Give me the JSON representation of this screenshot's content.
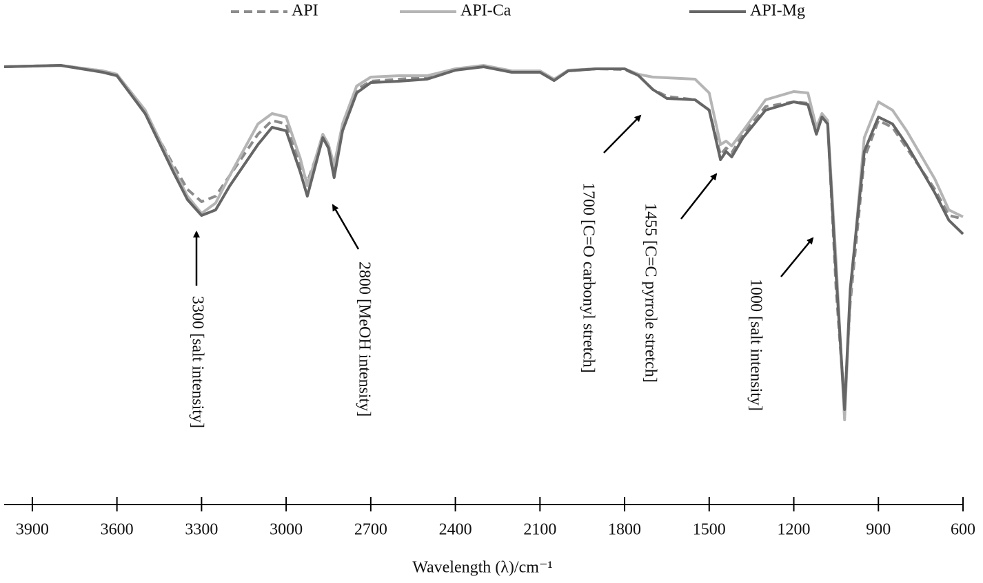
{
  "chart_data": {
    "type": "line",
    "x": [
      4000,
      3800,
      3650,
      3600,
      3500,
      3400,
      3350,
      3300,
      3250,
      3200,
      3100,
      3050,
      3000,
      2950,
      2925,
      2870,
      2850,
      2830,
      2800,
      2750,
      2700,
      2600,
      2500,
      2400,
      2300,
      2200,
      2100,
      2050,
      2000,
      1900,
      1800,
      1750,
      1700,
      1650,
      1550,
      1500,
      1460,
      1440,
      1420,
      1380,
      1300,
      1200,
      1150,
      1120,
      1100,
      1080,
      1050,
      1020,
      1000,
      950,
      900,
      850,
      800,
      700,
      650,
      600
    ],
    "series": [
      {
        "name": "API",
        "color": "#8c8c8c",
        "dashed": true,
        "values": [
          63.3,
          63.5,
          62.7,
          62.2,
          56.5,
          49,
          45.5,
          43.7,
          44.5,
          47.5,
          53.5,
          55.5,
          55,
          49,
          46.5,
          53,
          51.5,
          48,
          54.5,
          60,
          61.2,
          61.5,
          61.8,
          63,
          63.3,
          62.6,
          62.6,
          61.3,
          62.7,
          63,
          62.9,
          62,
          60,
          59,
          58.5,
          57,
          50.5,
          51.5,
          50.8,
          53.5,
          57.5,
          58.2,
          58,
          54,
          56.2,
          55.5,
          31,
          14,
          29,
          50,
          55.5,
          54.5,
          51.5,
          45.5,
          41.7,
          41.2
        ]
      },
      {
        "name": "API-Ca",
        "color": "#b5b5b5",
        "dashed": false,
        "values": [
          63.3,
          63.5,
          62.7,
          62.2,
          57,
          48.5,
          44.5,
          42,
          43.5,
          47.5,
          55,
          56.5,
          56,
          50,
          46,
          53.5,
          52,
          49,
          55,
          60.5,
          61.8,
          62,
          62,
          63,
          63.5,
          62.7,
          62.7,
          61.5,
          62.8,
          63,
          63,
          62.2,
          61.8,
          61.7,
          61.5,
          59.5,
          52,
          52.5,
          51.8,
          54,
          58.5,
          59.7,
          59.5,
          54.5,
          56.5,
          55.5,
          35,
          12,
          30,
          53,
          58.2,
          57,
          54,
          47,
          42.5,
          41.5
        ]
      },
      {
        "name": "API-Mg",
        "color": "#666666",
        "dashed": false,
        "values": [
          63.3,
          63.5,
          62.5,
          62,
          56.5,
          48,
          44,
          41.7,
          42.5,
          46,
          52,
          54.5,
          54,
          48,
          44.5,
          53,
          51.5,
          47.2,
          54,
          59.5,
          61,
          61.2,
          61.5,
          62.8,
          63.3,
          62.5,
          62.5,
          61.3,
          62.7,
          63,
          63,
          62,
          60,
          58.7,
          58.5,
          57,
          49.8,
          51,
          50.2,
          53,
          57,
          58.2,
          57.8,
          53.5,
          56,
          55,
          33,
          13.5,
          31,
          51,
          56,
          55,
          52,
          45,
          41,
          39
        ]
      }
    ],
    "xlim": [
      4000,
      600
    ],
    "ylim": [
      0,
      67
    ],
    "xticks": [
      3900,
      3600,
      3300,
      3000,
      2700,
      2400,
      2100,
      1800,
      1500,
      1200,
      900,
      600
    ],
    "xlabel": "Wavelength (λ)/cm⁻¹",
    "annotations": [
      "3300 [salt intensity]",
      "2800 [MeOH intensity]",
      "1700 [C=O carbonyl stretch]",
      "1455 [C=C pyrrole stretch]",
      "1000 [salt intensity]"
    ],
    "legend": "top"
  }
}
